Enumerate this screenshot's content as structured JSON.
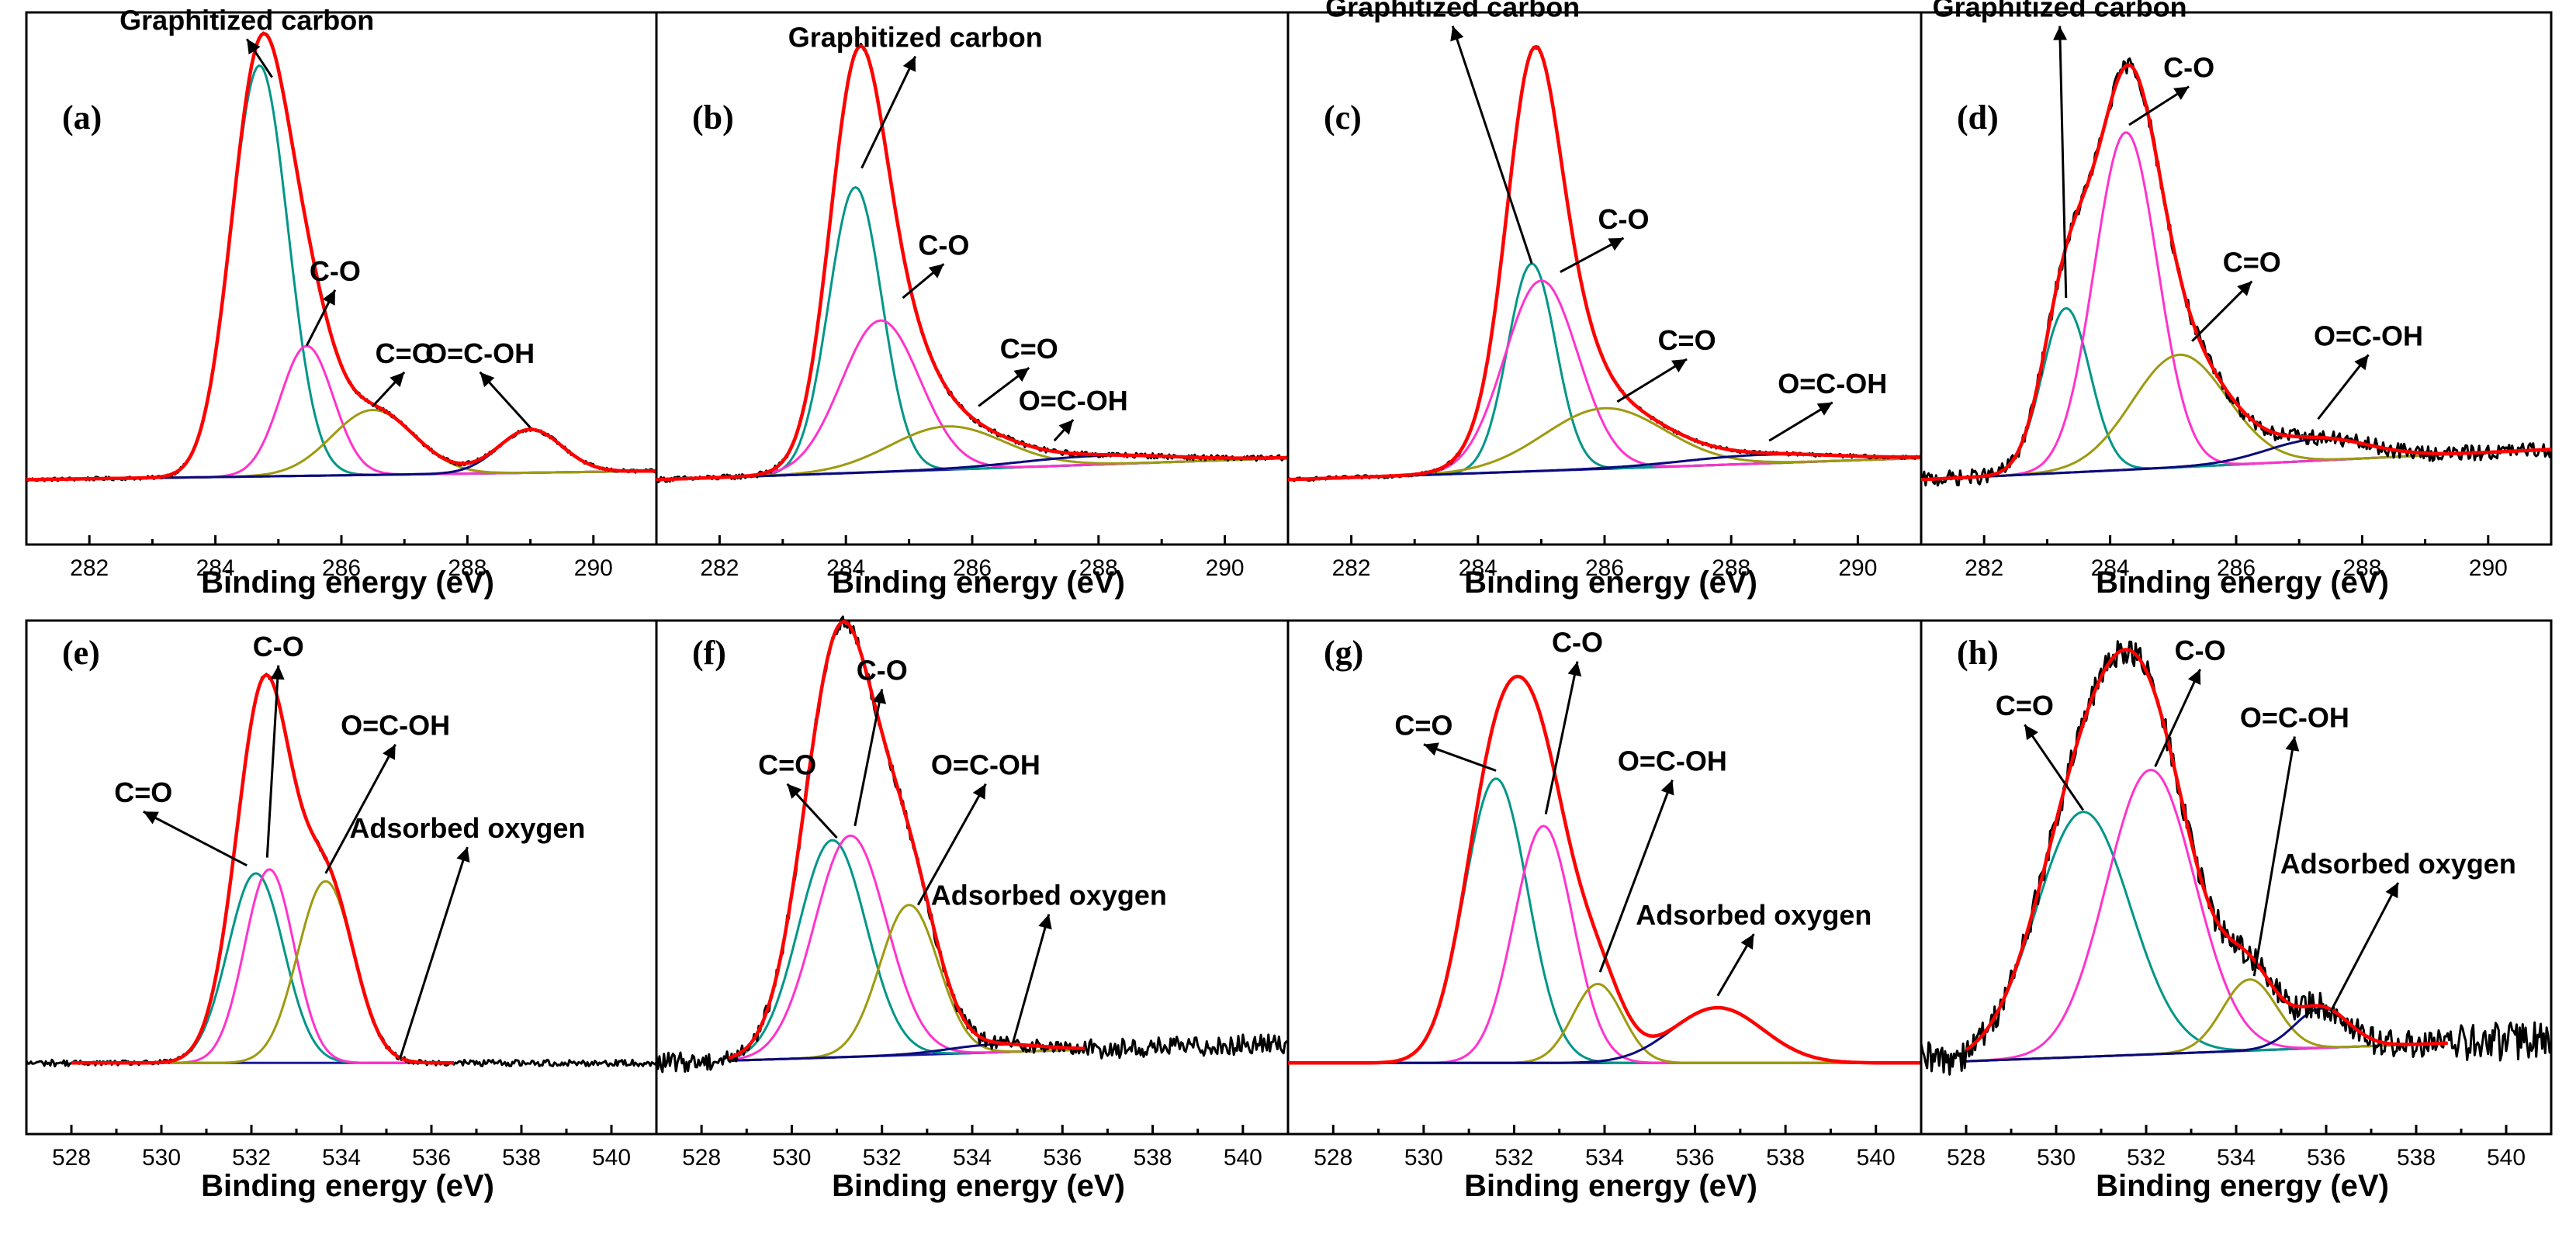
{
  "figure": {
    "description_note": "Eight-panel XPS deconvolution figure: C1s (a-d) and O1s (e-h)"
  },
  "colors": {
    "envelope": "#ff0000",
    "raw": "#000000",
    "graphitized": "#009688",
    "co": "#ff33cc",
    "c_double_o": "#9e9a10",
    "ocooh": "#0a0a7a",
    "adsorbed": "#0a0a7a",
    "baseline": "#1a1aa0",
    "c_double_o_o1s": "#009688",
    "co_o1s": "#ff33cc",
    "ocooh_o1s": "#9e9a10"
  },
  "chart_data": [
    {
      "id": "a",
      "type": "line",
      "label": "(a)",
      "xlabel": "Binding energy (eV)",
      "ylabel": "",
      "xlim": [
        281,
        291
      ],
      "xticks": [
        282,
        284,
        286,
        288,
        290
      ],
      "ylim": [
        -0.15,
        1.08
      ],
      "baseline": [
        0,
        0.02
      ],
      "raw_noise": 0.004,
      "components": [
        {
          "name": "Graphitized carbon",
          "center": 284.7,
          "amp": 0.95,
          "sigma": 0.45,
          "tail": 0.0,
          "color": "graphitized"
        },
        {
          "name": "C-O",
          "center": 285.45,
          "amp": 0.3,
          "sigma": 0.42,
          "tail": 0.0,
          "color": "co"
        },
        {
          "name": "C=O",
          "center": 286.5,
          "amp": 0.15,
          "sigma": 0.65,
          "tail": 0.0,
          "color": "c_double_o"
        },
        {
          "name": "O=C-OH",
          "center": 289.0,
          "amp": 0.1,
          "sigma": 0.5,
          "tail": 0.0,
          "color": "ocooh"
        }
      ],
      "annotations": [
        {
          "text": "Graphitized carbon",
          "peak": 0,
          "tx": 284.5,
          "ty": 1.04,
          "ax": 284.9,
          "ay": 0.93
        },
        {
          "text": "C-O",
          "peak": 1,
          "tx": 285.9,
          "ty": 0.46,
          "ax": 285.45,
          "ay": 0.31
        },
        {
          "text": "C=O",
          "peak": 2,
          "tx": 287.0,
          "ty": 0.27,
          "ax": 286.5,
          "ay": 0.17
        },
        {
          "text": "O=C-OH",
          "peak": 3,
          "tx": 288.2,
          "ty": 0.27,
          "ax": 289.0,
          "ay": 0.12
        }
      ]
    },
    {
      "id": "b",
      "type": "line",
      "label": "(b)",
      "xlabel": "Binding energy (eV)",
      "ylabel": "",
      "xlim": [
        281,
        291
      ],
      "xticks": [
        282,
        284,
        286,
        288,
        290
      ],
      "ylim": [
        -0.15,
        1.08
      ],
      "baseline": [
        0,
        0.05
      ],
      "raw_noise": 0.006,
      "components": [
        {
          "name": "Graphitized carbon",
          "center": 284.15,
          "amp": 0.66,
          "sigma": 0.42,
          "tail": 0.0,
          "color": "graphitized"
        },
        {
          "name": "C-O",
          "center": 284.55,
          "amp": 0.35,
          "sigma": 0.62,
          "tail": 0.0,
          "color": "co"
        },
        {
          "name": "C=O",
          "center": 285.6,
          "amp": 0.1,
          "sigma": 0.9,
          "tail": 0.0,
          "color": "c_double_o"
        },
        {
          "name": "O=C-OH",
          "center": 288.0,
          "amp": 0.02,
          "sigma": 1.2,
          "tail": 0.0,
          "color": "ocooh"
        }
      ],
      "annotations": [
        {
          "text": "Graphitized carbon",
          "peak": 0,
          "tx": 285.1,
          "ty": 1.0,
          "ax": 284.25,
          "ay": 0.72
        },
        {
          "text": "C-O",
          "peak": 1,
          "tx": 285.55,
          "ty": 0.52,
          "ax": 284.9,
          "ay": 0.42
        },
        {
          "text": "C=O",
          "peak": 2,
          "tx": 286.9,
          "ty": 0.28,
          "ax": 286.1,
          "ay": 0.17
        },
        {
          "text": "O=C-OH",
          "peak": 3,
          "tx": 287.6,
          "ty": 0.16,
          "ax": 287.3,
          "ay": 0.09
        }
      ]
    },
    {
      "id": "c",
      "type": "line",
      "label": "(c)",
      "xlabel": "Binding energy (eV)",
      "ylabel": "",
      "xlim": [
        281,
        291
      ],
      "xticks": [
        282,
        284,
        286,
        288,
        290
      ],
      "ylim": [
        -0.15,
        1.08
      ],
      "baseline": [
        0,
        0.05
      ],
      "raw_noise": 0.004,
      "components": [
        {
          "name": "Graphitized carbon",
          "center": 284.85,
          "amp": 0.48,
          "sigma": 0.38,
          "tail": 0.0,
          "color": "graphitized"
        },
        {
          "name": "C-O",
          "center": 285.0,
          "amp": 0.44,
          "sigma": 0.58,
          "tail": 0.0,
          "color": "co"
        },
        {
          "name": "C=O",
          "center": 286.0,
          "amp": 0.14,
          "sigma": 0.95,
          "tail": 0.0,
          "color": "c_double_o"
        },
        {
          "name": "O=C-OH",
          "center": 288.5,
          "amp": 0.02,
          "sigma": 1.2,
          "tail": 0.0,
          "color": "ocooh"
        }
      ],
      "annotations": [
        {
          "text": "Graphitized carbon",
          "peak": 0,
          "tx": 283.6,
          "ty": 1.07,
          "ax": 284.85,
          "ay": 0.5
        },
        {
          "text": "C-O",
          "peak": 1,
          "tx": 286.3,
          "ty": 0.58,
          "ax": 285.3,
          "ay": 0.48
        },
        {
          "text": "C=O",
          "peak": 2,
          "tx": 287.3,
          "ty": 0.3,
          "ax": 286.2,
          "ay": 0.18
        },
        {
          "text": "O=C-OH",
          "peak": 3,
          "tx": 289.6,
          "ty": 0.2,
          "ax": 288.6,
          "ay": 0.09
        }
      ]
    },
    {
      "id": "d",
      "type": "line",
      "label": "(d)",
      "xlabel": "Binding energy (eV)",
      "ylabel": "",
      "xlim": [
        281,
        291
      ],
      "xticks": [
        282,
        284,
        286,
        288,
        290
      ],
      "ylim": [
        -0.15,
        1.08
      ],
      "baseline": [
        0,
        0.07
      ],
      "raw_noise": 0.018,
      "components": [
        {
          "name": "Graphitized carbon",
          "center": 283.3,
          "amp": 0.38,
          "sigma": 0.38,
          "tail": 0.0,
          "color": "graphitized"
        },
        {
          "name": "C-O",
          "center": 284.25,
          "amp": 0.78,
          "sigma": 0.5,
          "tail": 0.0,
          "color": "co"
        },
        {
          "name": "C=O",
          "center": 285.1,
          "amp": 0.26,
          "sigma": 0.75,
          "tail": 0.0,
          "color": "c_double_o"
        },
        {
          "name": "O=C-OH",
          "center": 287.3,
          "amp": 0.05,
          "sigma": 0.8,
          "tail": 0.0,
          "color": "ocooh"
        }
      ],
      "annotations": [
        {
          "text": "Graphitized carbon",
          "peak": 0,
          "tx": 283.2,
          "ty": 1.07,
          "ax": 283.3,
          "ay": 0.42
        },
        {
          "text": "C-O",
          "peak": 1,
          "tx": 285.25,
          "ty": 0.93,
          "ax": 284.3,
          "ay": 0.82
        },
        {
          "text": "C=O",
          "peak": 2,
          "tx": 286.25,
          "ty": 0.48,
          "ax": 285.3,
          "ay": 0.32
        },
        {
          "text": "O=C-OH",
          "peak": 3,
          "tx": 288.1,
          "ty": 0.31,
          "ax": 287.3,
          "ay": 0.14
        }
      ]
    },
    {
      "id": "e",
      "type": "line",
      "label": "(e)",
      "xlabel": "Binding energy  (eV)",
      "ylabel": "",
      "xlim": [
        527,
        541
      ],
      "xticks": [
        528,
        530,
        532,
        534,
        536,
        538,
        540
      ],
      "ylim": [
        -0.18,
        1.12
      ],
      "baseline": [
        0,
        0.0
      ],
      "fit_range": [
        528.0,
        536.5
      ],
      "raw_noise": 0.006,
      "components": [
        {
          "name": "C=O",
          "center": 532.1,
          "amp": 0.48,
          "sigma": 0.62,
          "tail": 0.0,
          "color": "c_double_o_o1s"
        },
        {
          "name": "C-O",
          "center": 532.4,
          "amp": 0.49,
          "sigma": 0.55,
          "tail": 0.0,
          "color": "co_o1s"
        },
        {
          "name": "O=C-OH",
          "center": 533.65,
          "amp": 0.46,
          "sigma": 0.62,
          "tail": 0.0,
          "color": "ocooh_o1s"
        },
        {
          "name": "Adsorbed oxygen",
          "center": 535.0,
          "amp": 0.0,
          "sigma": 0.8,
          "tail": 0.0,
          "color": "adsorbed"
        }
      ],
      "annotations": [
        {
          "text": "C=O",
          "peak": 0,
          "tx": 529.6,
          "ty": 0.66,
          "ax": 531.9,
          "ay": 0.5
        },
        {
          "text": "C-O",
          "peak": 1,
          "tx": 532.6,
          "ty": 1.03,
          "ax": 532.35,
          "ay": 0.52
        },
        {
          "text": "O=C-OH",
          "peak": 2,
          "tx": 535.2,
          "ty": 0.83,
          "ax": 533.65,
          "ay": 0.48
        },
        {
          "text": "Adsorbed oxygen",
          "peak": 3,
          "tx": 536.8,
          "ty": 0.57,
          "ax": 535.3,
          "ay": 0.01
        }
      ]
    },
    {
      "id": "f",
      "type": "line",
      "label": "(f)",
      "xlabel": "Binding energy  (eV)",
      "ylabel": "",
      "xlim": [
        527,
        541
      ],
      "xticks": [
        528,
        530,
        532,
        534,
        536,
        538,
        540
      ],
      "ylim": [
        -0.18,
        1.12
      ],
      "baseline": [
        0,
        0.05
      ],
      "fit_range": [
        528.6,
        536.5
      ],
      "raw_noise": 0.018,
      "components": [
        {
          "name": "C=O",
          "center": 530.9,
          "amp": 0.55,
          "sigma": 0.75,
          "tail": 0.0,
          "color": "c_double_o_o1s"
        },
        {
          "name": "C-O",
          "center": 531.3,
          "amp": 0.56,
          "sigma": 0.8,
          "tail": 0.0,
          "color": "co_o1s"
        },
        {
          "name": "O=C-OH",
          "center": 532.6,
          "amp": 0.38,
          "sigma": 0.65,
          "tail": 0.0,
          "color": "ocooh_o1s"
        },
        {
          "name": "Adsorbed oxygen",
          "center": 534.5,
          "amp": 0.02,
          "sigma": 1.0,
          "tail": 0.0,
          "color": "adsorbed"
        }
      ],
      "annotations": [
        {
          "text": "C=O",
          "peak": 0,
          "tx": 529.9,
          "ty": 0.73,
          "ax": 531.0,
          "ay": 0.57
        },
        {
          "text": "C-O",
          "peak": 1,
          "tx": 532.0,
          "ty": 0.97,
          "ax": 531.4,
          "ay": 0.6
        },
        {
          "text": "O=C-OH",
          "peak": 2,
          "tx": 534.3,
          "ty": 0.73,
          "ax": 532.8,
          "ay": 0.4
        },
        {
          "text": "Adsorbed oxygen",
          "peak": 3,
          "tx": 535.7,
          "ty": 0.4,
          "ax": 534.9,
          "ay": 0.05
        }
      ]
    },
    {
      "id": "g",
      "type": "line",
      "label": "(g)",
      "xlabel": "Binding energy  (eV)",
      "ylabel": "",
      "xlim": [
        527,
        541
      ],
      "xticks": [
        528,
        530,
        532,
        534,
        536,
        538,
        540
      ],
      "ylim": [
        -0.18,
        1.12
      ],
      "baseline": [
        0,
        0.0
      ],
      "fit_range": [
        527.0,
        541.0
      ],
      "raw_noise": 0.0,
      "components": [
        {
          "name": "C=O",
          "center": 531.6,
          "amp": 0.72,
          "sigma": 0.7,
          "tail": 0.0,
          "color": "c_double_o_o1s"
        },
        {
          "name": "C-O",
          "center": 532.65,
          "amp": 0.6,
          "sigma": 0.65,
          "tail": 0.0,
          "color": "co_o1s"
        },
        {
          "name": "O=C-OH",
          "center": 533.85,
          "amp": 0.2,
          "sigma": 0.55,
          "tail": 0.0,
          "color": "ocooh_o1s"
        },
        {
          "name": "Adsorbed oxygen",
          "center": 536.5,
          "amp": 0.14,
          "sigma": 1.0,
          "tail": 0.0,
          "color": "adsorbed"
        }
      ],
      "annotations": [
        {
          "text": "C=O",
          "peak": 0,
          "tx": 530.0,
          "ty": 0.83,
          "ax": 531.6,
          "ay": 0.74
        },
        {
          "text": "C-O",
          "peak": 1,
          "tx": 533.4,
          "ty": 1.04,
          "ax": 532.7,
          "ay": 0.63
        },
        {
          "text": "O=C-OH",
          "peak": 2,
          "tx": 535.5,
          "ty": 0.74,
          "ax": 533.9,
          "ay": 0.23
        },
        {
          "text": "Adsorbed oxygen",
          "peak": 3,
          "tx": 537.3,
          "ty": 0.35,
          "ax": 536.5,
          "ay": 0.17
        }
      ]
    },
    {
      "id": "h",
      "type": "line",
      "label": "(h)",
      "xlabel": "Binding energy  (eV)",
      "ylabel": "",
      "xlim": [
        527,
        541
      ],
      "xticks": [
        528,
        530,
        532,
        534,
        536,
        538,
        540
      ],
      "ylim": [
        -0.18,
        1.12
      ],
      "baseline": [
        0,
        0.06
      ],
      "fit_range": [
        528.0,
        538.7
      ],
      "raw_noise": 0.035,
      "components": [
        {
          "name": "C=O",
          "center": 530.6,
          "amp": 0.62,
          "sigma": 1.05,
          "tail": 0.0,
          "color": "c_double_o_o1s"
        },
        {
          "name": "C-O",
          "center": 532.1,
          "amp": 0.72,
          "sigma": 0.98,
          "tail": 0.0,
          "color": "co_o1s"
        },
        {
          "name": "O=C-OH",
          "center": 534.3,
          "amp": 0.18,
          "sigma": 0.6,
          "tail": 0.0,
          "color": "ocooh_o1s"
        },
        {
          "name": "Adsorbed oxygen",
          "center": 535.9,
          "amp": 0.1,
          "sigma": 0.6,
          "tail": 0.0,
          "color": "adsorbed"
        }
      ],
      "annotations": [
        {
          "text": "C=O",
          "peak": 0,
          "tx": 529.3,
          "ty": 0.88,
          "ax": 530.6,
          "ay": 0.64
        },
        {
          "text": "C-O",
          "peak": 1,
          "tx": 533.2,
          "ty": 1.02,
          "ax": 532.2,
          "ay": 0.75
        },
        {
          "text": "O=C-OH",
          "peak": 2,
          "tx": 535.3,
          "ty": 0.85,
          "ax": 534.4,
          "ay": 0.22
        },
        {
          "text": "Adsorbed oxygen",
          "peak": 3,
          "tx": 537.6,
          "ty": 0.48,
          "ax": 536.1,
          "ay": 0.13
        }
      ]
    }
  ]
}
